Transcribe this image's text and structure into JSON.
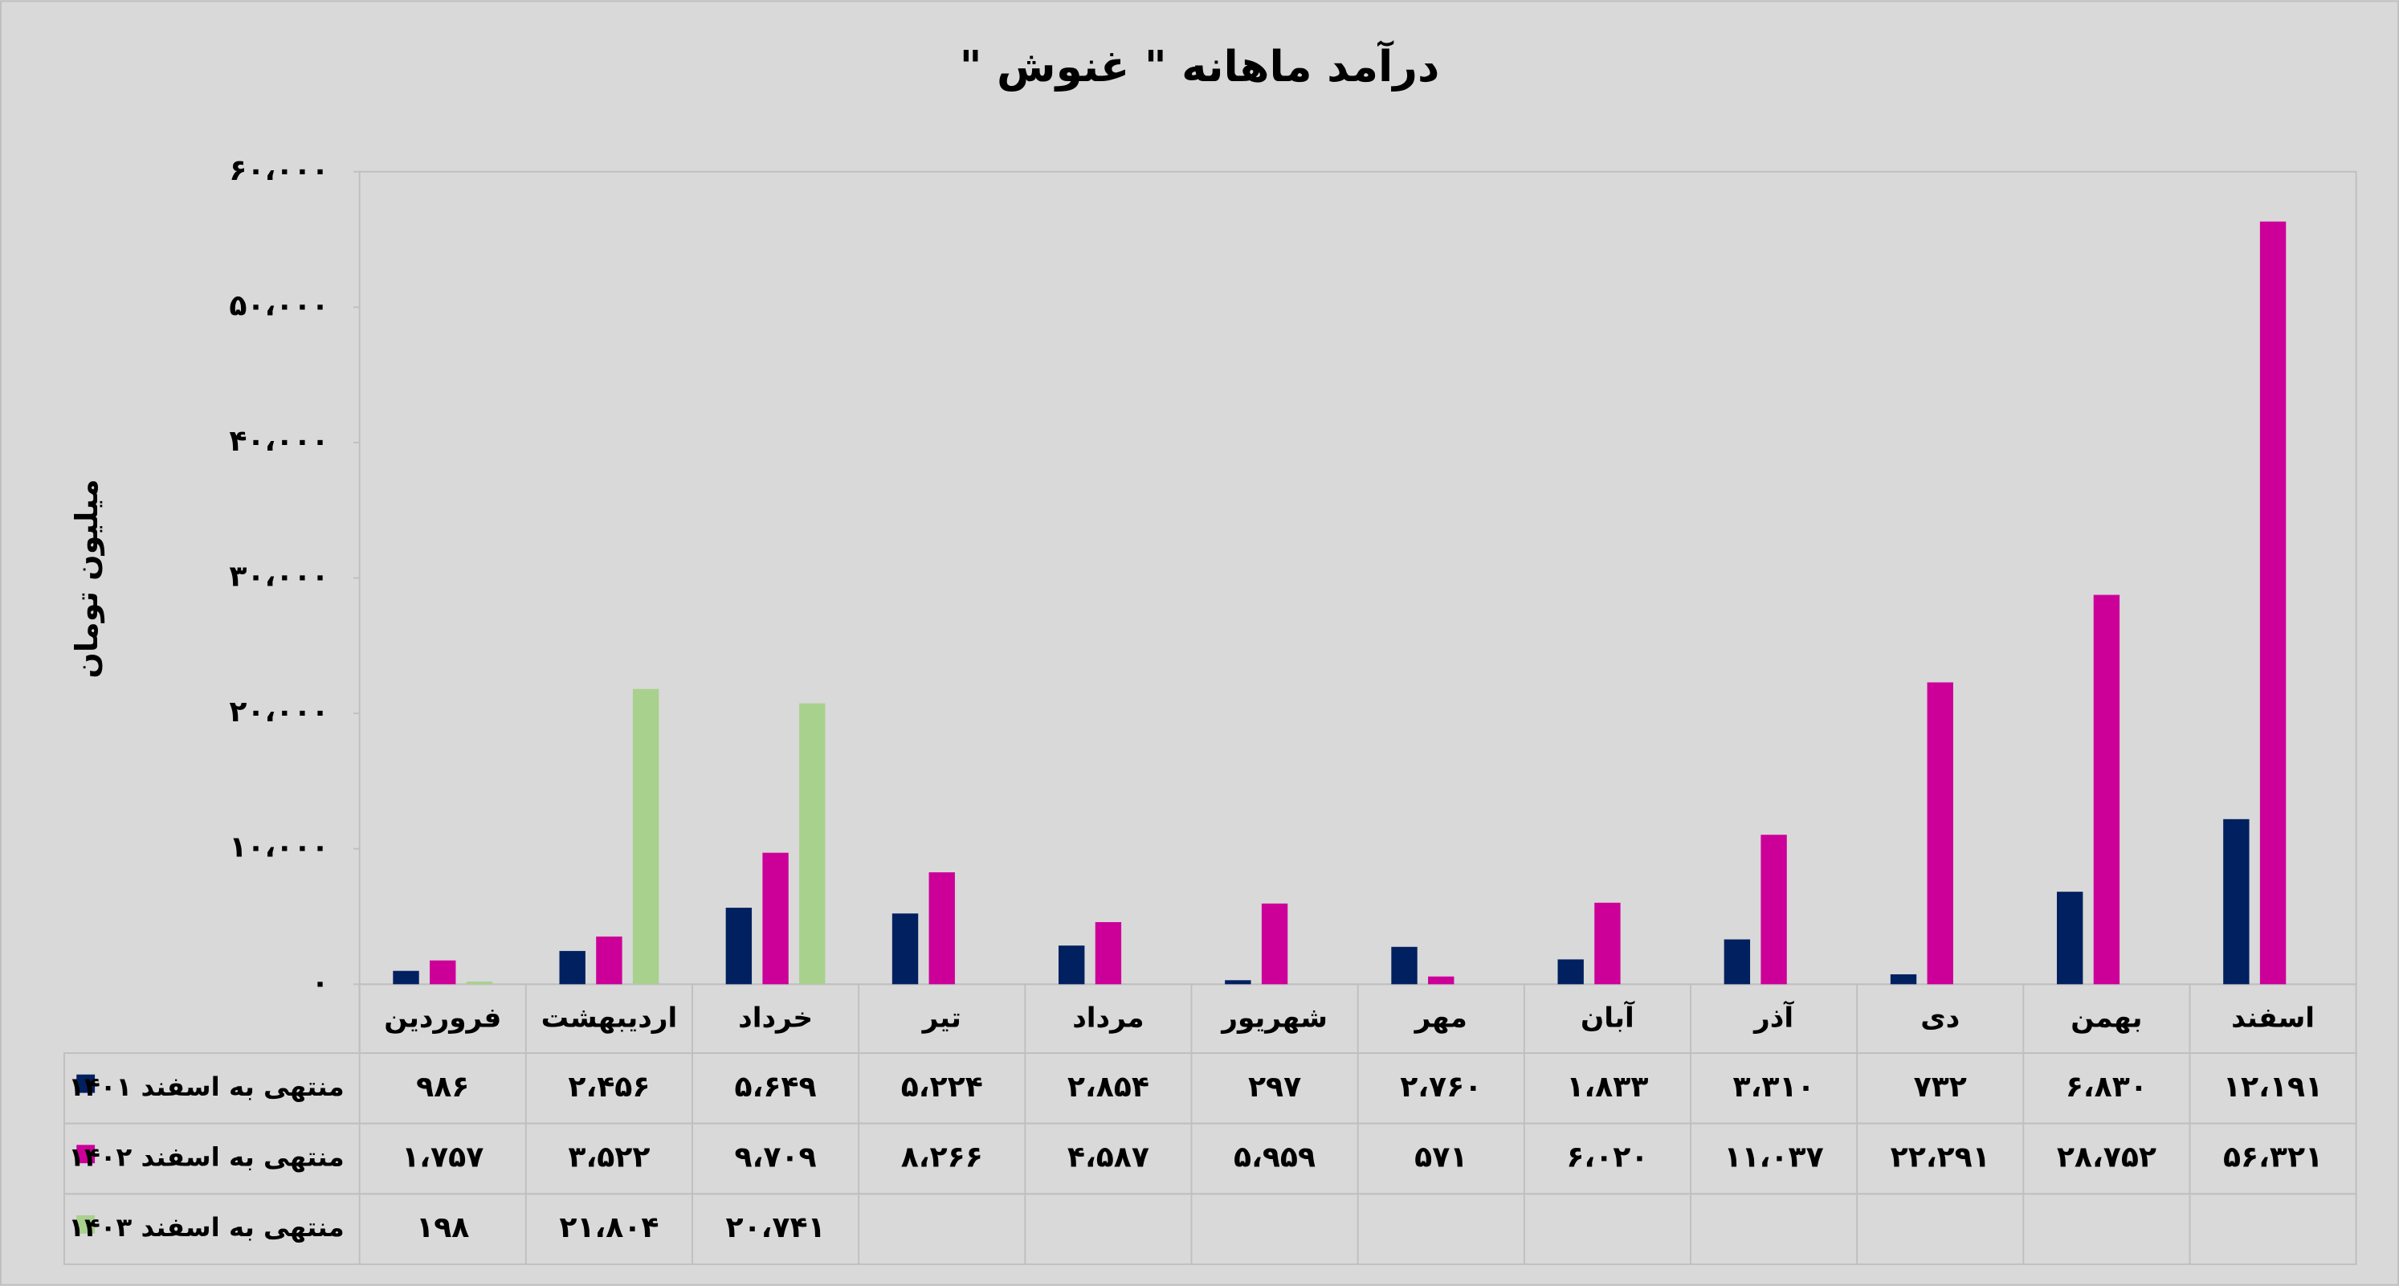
{
  "chart_data": {
    "type": "bar",
    "title": "درآمد ماهانه \" غنوش \"",
    "y_label": "میلیون تومان",
    "categories": [
      "فروردین",
      "اردیبهشت",
      "خرداد",
      "تیر",
      "مرداد",
      "شهریور",
      "مهر",
      "آبان",
      "آذر",
      "دی",
      "بهمن",
      "اسفند"
    ],
    "series": [
      {
        "name": "منتهی به اسفند ۱۴۰۱",
        "color": "#002060",
        "values": [
          986,
          2456,
          5649,
          5224,
          2854,
          297,
          2760,
          1833,
          3310,
          732,
          6830,
          12191
        ],
        "value_labels": [
          "۹۸۶",
          "۲،۴۵۶",
          "۵،۶۴۹",
          "۵،۲۲۴",
          "۲،۸۵۴",
          "۲۹۷",
          "۲،۷۶۰",
          "۱،۸۳۳",
          "۳،۳۱۰",
          "۷۳۲",
          "۶،۸۳۰",
          "۱۲،۱۹۱"
        ]
      },
      {
        "name": "منتهی به اسفند ۱۴۰۲",
        "color": "#cc0099",
        "values": [
          1757,
          3522,
          9709,
          8266,
          4587,
          5959,
          571,
          6020,
          11037,
          22291,
          28752,
          56321
        ],
        "value_labels": [
          "۱،۷۵۷",
          "۳،۵۲۲",
          "۹،۷۰۹",
          "۸،۲۶۶",
          "۴،۵۸۷",
          "۵،۹۵۹",
          "۵۷۱",
          "۶،۰۲۰",
          "۱۱،۰۳۷",
          "۲۲،۲۹۱",
          "۲۸،۷۵۲",
          "۵۶،۳۲۱"
        ]
      },
      {
        "name": "منتهی به اسفند ۱۴۰۳",
        "color": "#a9d18e",
        "values": [
          198,
          21804,
          20741,
          null,
          null,
          null,
          null,
          null,
          null,
          null,
          null,
          null
        ],
        "value_labels": [
          "۱۹۸",
          "۲۱،۸۰۴",
          "۲۰،۷۴۱",
          null,
          null,
          null,
          null,
          null,
          null,
          null,
          null,
          null
        ]
      }
    ],
    "ylim": [
      0,
      60000
    ],
    "yticks": [
      {
        "value": 0,
        "label": "۰"
      },
      {
        "value": 10000,
        "label": "۱۰،۰۰۰"
      },
      {
        "value": 20000,
        "label": "۲۰،۰۰۰"
      },
      {
        "value": 30000,
        "label": "۳۰،۰۰۰"
      },
      {
        "value": 40000,
        "label": "۴۰،۰۰۰"
      },
      {
        "value": 50000,
        "label": "۵۰،۰۰۰"
      },
      {
        "value": 60000,
        "label": "۶۰،۰۰۰"
      }
    ],
    "grid": false
  }
}
